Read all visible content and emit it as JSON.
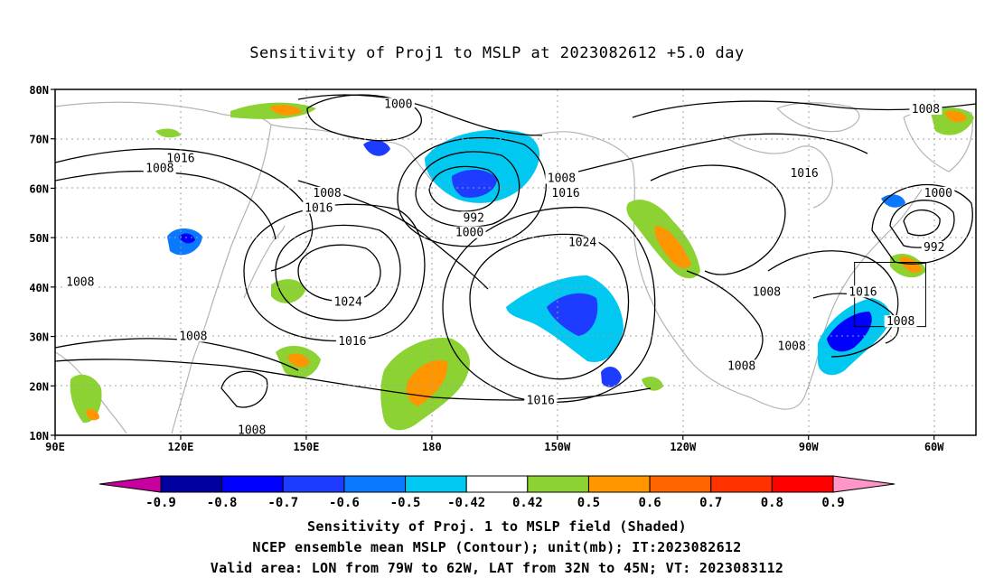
{
  "title": "Sensitivity of Proj1 to MSLP at 2023082612 +5.0 day",
  "map": {
    "lat_labels": [
      "80N",
      "70N",
      "60N",
      "50N",
      "40N",
      "30N",
      "20N",
      "10N"
    ],
    "lon_labels": [
      "90E",
      "120E",
      "150E",
      "180",
      "150W",
      "120W",
      "90W",
      "60W"
    ],
    "lon_range": [
      90,
      310
    ],
    "lat_range": [
      10,
      80
    ]
  },
  "contour_labels": [
    {
      "text": "1000",
      "lon": 172,
      "lat": 77
    },
    {
      "text": "1008",
      "lon": 298,
      "lat": 76
    },
    {
      "text": "1016",
      "lon": 120,
      "lat": 66
    },
    {
      "text": "1008",
      "lon": 115,
      "lat": 64
    },
    {
      "text": "1016",
      "lon": 269,
      "lat": 63
    },
    {
      "text": "1008",
      "lon": 211,
      "lat": 62
    },
    {
      "text": "1016",
      "lon": 212,
      "lat": 59
    },
    {
      "text": "1008",
      "lon": 155,
      "lat": 59
    },
    {
      "text": "1016",
      "lon": 153,
      "lat": 56
    },
    {
      "text": "1000",
      "lon": 301,
      "lat": 59
    },
    {
      "text": "992",
      "lon": 190,
      "lat": 54
    },
    {
      "text": "1000",
      "lon": 189,
      "lat": 51
    },
    {
      "text": "1024",
      "lon": 216,
      "lat": 49
    },
    {
      "text": "992",
      "lon": 300,
      "lat": 48
    },
    {
      "text": "1008",
      "lon": 96,
      "lat": 41
    },
    {
      "text": "1024",
      "lon": 160,
      "lat": 37
    },
    {
      "text": "1008",
      "lon": 260,
      "lat": 39
    },
    {
      "text": "1016",
      "lon": 283,
      "lat": 39
    },
    {
      "text": "1008",
      "lon": 292,
      "lat": 33
    },
    {
      "text": "1008",
      "lon": 123,
      "lat": 30
    },
    {
      "text": "1016",
      "lon": 161,
      "lat": 29
    },
    {
      "text": "1008",
      "lon": 266,
      "lat": 28
    },
    {
      "text": "1008",
      "lon": 254,
      "lat": 24
    },
    {
      "text": "1016",
      "lon": 206,
      "lat": 17
    },
    {
      "text": "1008",
      "lon": 137,
      "lat": 11
    }
  ],
  "valid_area": {
    "lon_min": -79,
    "lon_max": -62,
    "lat_min": 32,
    "lat_max": 45
  },
  "colorbar": {
    "labels": [
      "-0.9",
      "-0.8",
      "-0.7",
      "-0.6",
      "-0.5",
      "-0.42",
      "0.42",
      "0.5",
      "0.6",
      "0.7",
      "0.8",
      "0.9"
    ],
    "colors": [
      "#c800a0",
      "#0000a0",
      "#0000ff",
      "#1e3cff",
      "#0a78ff",
      "#00c8f0",
      "#ffffff",
      "#8cd232",
      "#ff9600",
      "#ff6400",
      "#ff3200",
      "#ff0000",
      "#ff96c8"
    ]
  },
  "captions": {
    "line1": "Sensitivity of Proj. 1 to MSLP field (Shaded)",
    "line2": "NCEP ensemble mean MSLP (Contour); unit(mb); IT:2023082612",
    "line3": "Valid area: LON from 79W to 62W, LAT from 32N to 45N; VT: 2023083112"
  }
}
